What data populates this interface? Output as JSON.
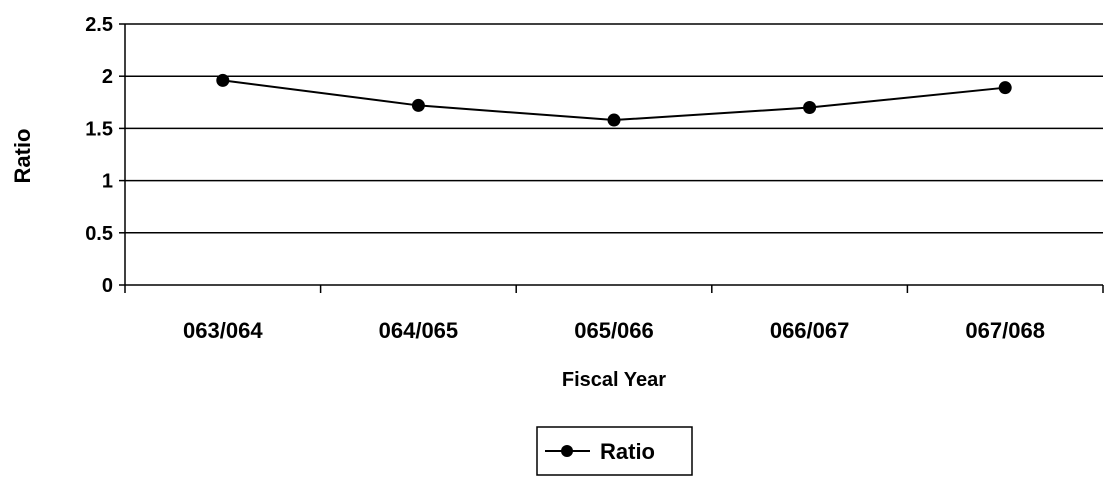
{
  "chart_data": {
    "type": "line",
    "title": "",
    "xlabel": "Fiscal Year",
    "ylabel": "Ratio",
    "categories": [
      "063/064",
      "064/065",
      "065/066",
      "066/067",
      "067/068"
    ],
    "series": [
      {
        "name": "Ratio",
        "values": [
          1.96,
          1.72,
          1.58,
          1.7,
          1.89
        ]
      }
    ],
    "ylim": [
      0,
      2.5
    ],
    "yticks": [
      "0",
      "0.5",
      "1",
      "1.5",
      "2",
      "2.5"
    ],
    "grid": true,
    "legend": "bottom-center",
    "colors": {
      "line": "#000000",
      "grid": "#000000",
      "background": "#ffffff"
    }
  }
}
